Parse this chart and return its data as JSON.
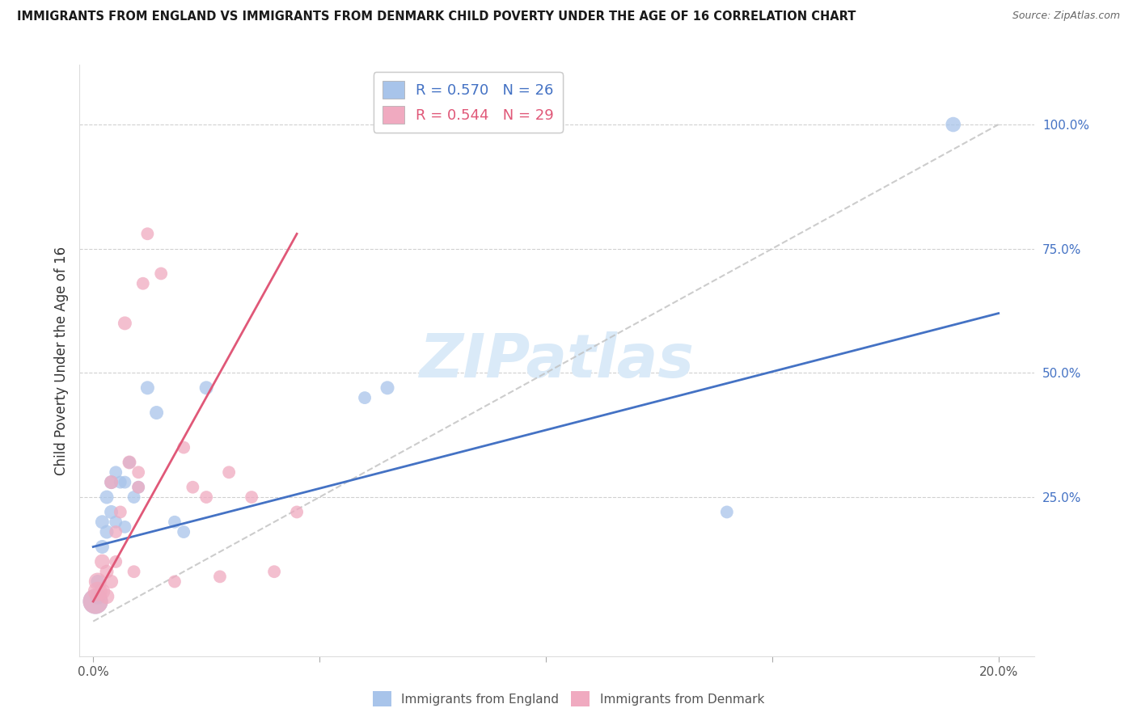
{
  "title": "IMMIGRANTS FROM ENGLAND VS IMMIGRANTS FROM DENMARK CHILD POVERTY UNDER THE AGE OF 16 CORRELATION CHART",
  "source": "Source: ZipAtlas.com",
  "ylabel": "Child Poverty Under the Age of 16",
  "y_tick_labels_right": [
    "25.0%",
    "50.0%",
    "75.0%",
    "100.0%"
  ],
  "y_ticks_right": [
    0.25,
    0.5,
    0.75,
    1.0
  ],
  "xlim": [
    -0.003,
    0.208
  ],
  "ylim": [
    -0.07,
    1.12
  ],
  "england_R": 0.57,
  "england_N": 26,
  "denmark_R": 0.544,
  "denmark_N": 29,
  "england_color": "#a8c4ea",
  "denmark_color": "#f0aac0",
  "england_line_color": "#4472c4",
  "denmark_line_color": "#e05878",
  "watermark": "ZIPatlas",
  "watermark_color": "#daeaf8",
  "england_x": [
    0.0005,
    0.001,
    0.001,
    0.002,
    0.002,
    0.003,
    0.003,
    0.004,
    0.004,
    0.005,
    0.005,
    0.006,
    0.007,
    0.007,
    0.008,
    0.009,
    0.01,
    0.012,
    0.014,
    0.018,
    0.02,
    0.025,
    0.06,
    0.065,
    0.14,
    0.19
  ],
  "england_y": [
    0.04,
    0.05,
    0.08,
    0.15,
    0.2,
    0.18,
    0.25,
    0.22,
    0.28,
    0.2,
    0.3,
    0.28,
    0.19,
    0.28,
    0.32,
    0.25,
    0.27,
    0.47,
    0.42,
    0.2,
    0.18,
    0.47,
    0.45,
    0.47,
    0.22,
    1.0
  ],
  "england_sizes": [
    500,
    200,
    150,
    150,
    150,
    150,
    150,
    150,
    150,
    130,
    130,
    130,
    130,
    130,
    130,
    130,
    130,
    150,
    150,
    130,
    130,
    150,
    130,
    150,
    130,
    180
  ],
  "denmark_x": [
    0.0005,
    0.001,
    0.001,
    0.002,
    0.002,
    0.003,
    0.003,
    0.004,
    0.004,
    0.005,
    0.005,
    0.006,
    0.007,
    0.008,
    0.009,
    0.01,
    0.01,
    0.011,
    0.012,
    0.015,
    0.018,
    0.02,
    0.022,
    0.025,
    0.028,
    0.03,
    0.035,
    0.04,
    0.045
  ],
  "denmark_y": [
    0.04,
    0.06,
    0.08,
    0.06,
    0.12,
    0.05,
    0.1,
    0.08,
    0.28,
    0.12,
    0.18,
    0.22,
    0.6,
    0.32,
    0.1,
    0.27,
    0.3,
    0.68,
    0.78,
    0.7,
    0.08,
    0.35,
    0.27,
    0.25,
    0.09,
    0.3,
    0.25,
    0.1,
    0.22
  ],
  "denmark_sizes": [
    500,
    300,
    250,
    200,
    180,
    180,
    150,
    150,
    150,
    130,
    130,
    130,
    150,
    150,
    130,
    130,
    130,
    130,
    130,
    130,
    130,
    130,
    130,
    130,
    130,
    130,
    130,
    130,
    130
  ],
  "ref_line_x": [
    0.0,
    0.2
  ],
  "ref_line_y": [
    0.0,
    1.0
  ],
  "blue_line_x0": 0.0,
  "blue_line_y0": 0.15,
  "blue_line_x1": 0.2,
  "blue_line_y1": 0.62,
  "pink_line_x0": 0.0,
  "pink_line_y0": 0.04,
  "pink_line_x1": 0.045,
  "pink_line_y1": 0.78
}
